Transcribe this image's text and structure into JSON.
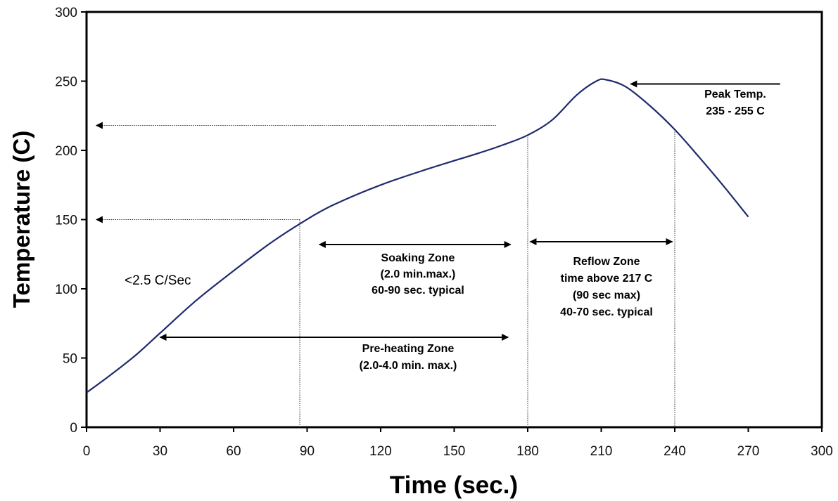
{
  "chart_data": {
    "type": "line",
    "title": "",
    "xlabel": "Time (sec.)",
    "ylabel": "Temperature (C)",
    "xlim": [
      0,
      300
    ],
    "ylim": [
      0,
      300
    ],
    "x_ticks": [
      0,
      30,
      60,
      90,
      120,
      150,
      180,
      210,
      240,
      270,
      300
    ],
    "y_ticks": [
      0,
      50,
      100,
      150,
      200,
      250,
      300
    ],
    "grid": false,
    "line_color": "#1f2a6e",
    "series": [
      {
        "x": [
          0,
          10,
          20,
          30,
          45,
          60,
          75,
          88,
          100,
          120,
          140,
          160,
          170,
          180,
          190,
          200,
          208,
          212,
          220,
          230,
          240,
          250,
          260,
          270
        ],
        "y": [
          25,
          38,
          52,
          68,
          92,
          113,
          133,
          148,
          160,
          175,
          187,
          198,
          204,
          211,
          222,
          240,
          250,
          251,
          246,
          232,
          215,
          195,
          174,
          152
        ]
      }
    ],
    "guides": {
      "vertical": [
        {
          "x": 87,
          "y": 150
        },
        {
          "x": 180,
          "y": 211
        },
        {
          "x": 240,
          "y": 215
        }
      ],
      "horizontal": [
        {
          "y": 218,
          "x_from": 167,
          "x_to": 4
        },
        {
          "y": 150,
          "x_from": 87,
          "x_to": 4
        }
      ]
    },
    "annotations": {
      "peak_temp": {
        "line1": "Peak Temp.",
        "line2": "235 - 255 C",
        "arrow_from_x": 283,
        "arrow_to_x": 222,
        "y": 248
      },
      "ramp_rate": "<2.5 C/Sec",
      "soaking": {
        "line1": "Soaking Zone",
        "line2": "(2.0 min.max.)",
        "line3": "60-90 sec. typical",
        "x_from": 95,
        "x_to": 173,
        "y": 132
      },
      "reflow": {
        "line1": "Reflow Zone",
        "line2": "time above 217 C",
        "line3": "(90 sec max)",
        "line4": "40-70 sec. typical",
        "x_from": 181,
        "x_to": 239,
        "y": 134
      },
      "preheating": {
        "line1": "Pre-heating Zone",
        "line2": "(2.0-4.0 min. max.)",
        "x_from": 30,
        "x_to": 172,
        "y": 65
      }
    }
  }
}
